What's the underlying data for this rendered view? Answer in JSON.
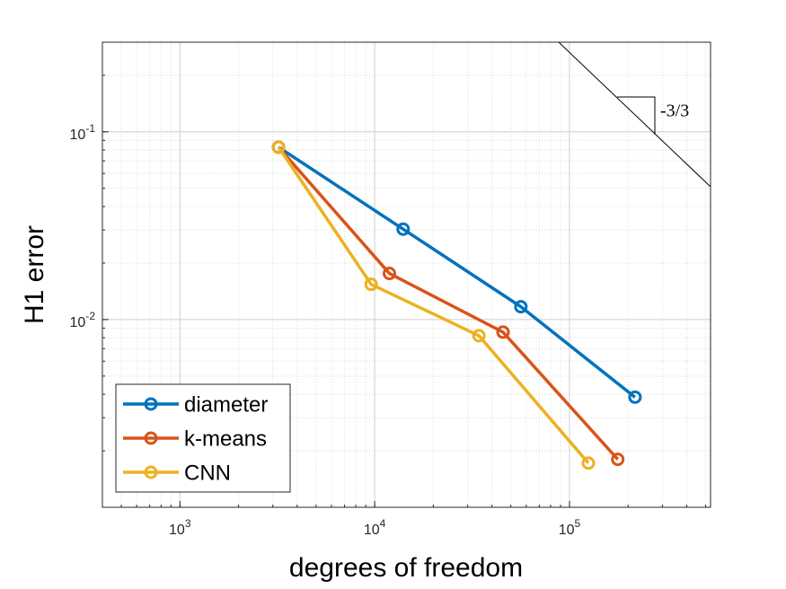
{
  "chart_data": {
    "type": "line",
    "x_label": "degrees of freedom",
    "y_label": "H1 error",
    "x_log": true,
    "y_log": true,
    "grid": true,
    "minor_grid": true,
    "xlim": [
      400,
      530000
    ],
    "ylim": [
      0.001,
      0.3
    ],
    "xticks": [
      {
        "value": 1000,
        "label": "10^3"
      },
      {
        "value": 10000,
        "label": "10^4"
      },
      {
        "value": 100000,
        "label": "10^5"
      }
    ],
    "yticks": [
      {
        "value": 0.01,
        "label": "10^-2"
      },
      {
        "value": 0.1,
        "label": "10^-1"
      }
    ],
    "legend": "southwest",
    "annotation": "-3/3",
    "series": [
      {
        "name": "diameter",
        "color": "#0072BD",
        "x": [
          3210,
          14000,
          56300,
          217000
        ],
        "values": [
          0.0828,
          0.0303,
          0.0117,
          0.00386
        ]
      },
      {
        "name": "k-means",
        "color": "#D95319",
        "x": [
          3210,
          11900,
          45600,
          177000
        ],
        "values": [
          0.0828,
          0.0176,
          0.00857,
          0.0018
        ]
      },
      {
        "name": "CNN",
        "color": "#EDB120",
        "x": [
          3210,
          9590,
          34300,
          125000
        ],
        "values": [
          0.0828,
          0.0154,
          0.0082,
          0.00172
        ]
      }
    ]
  }
}
